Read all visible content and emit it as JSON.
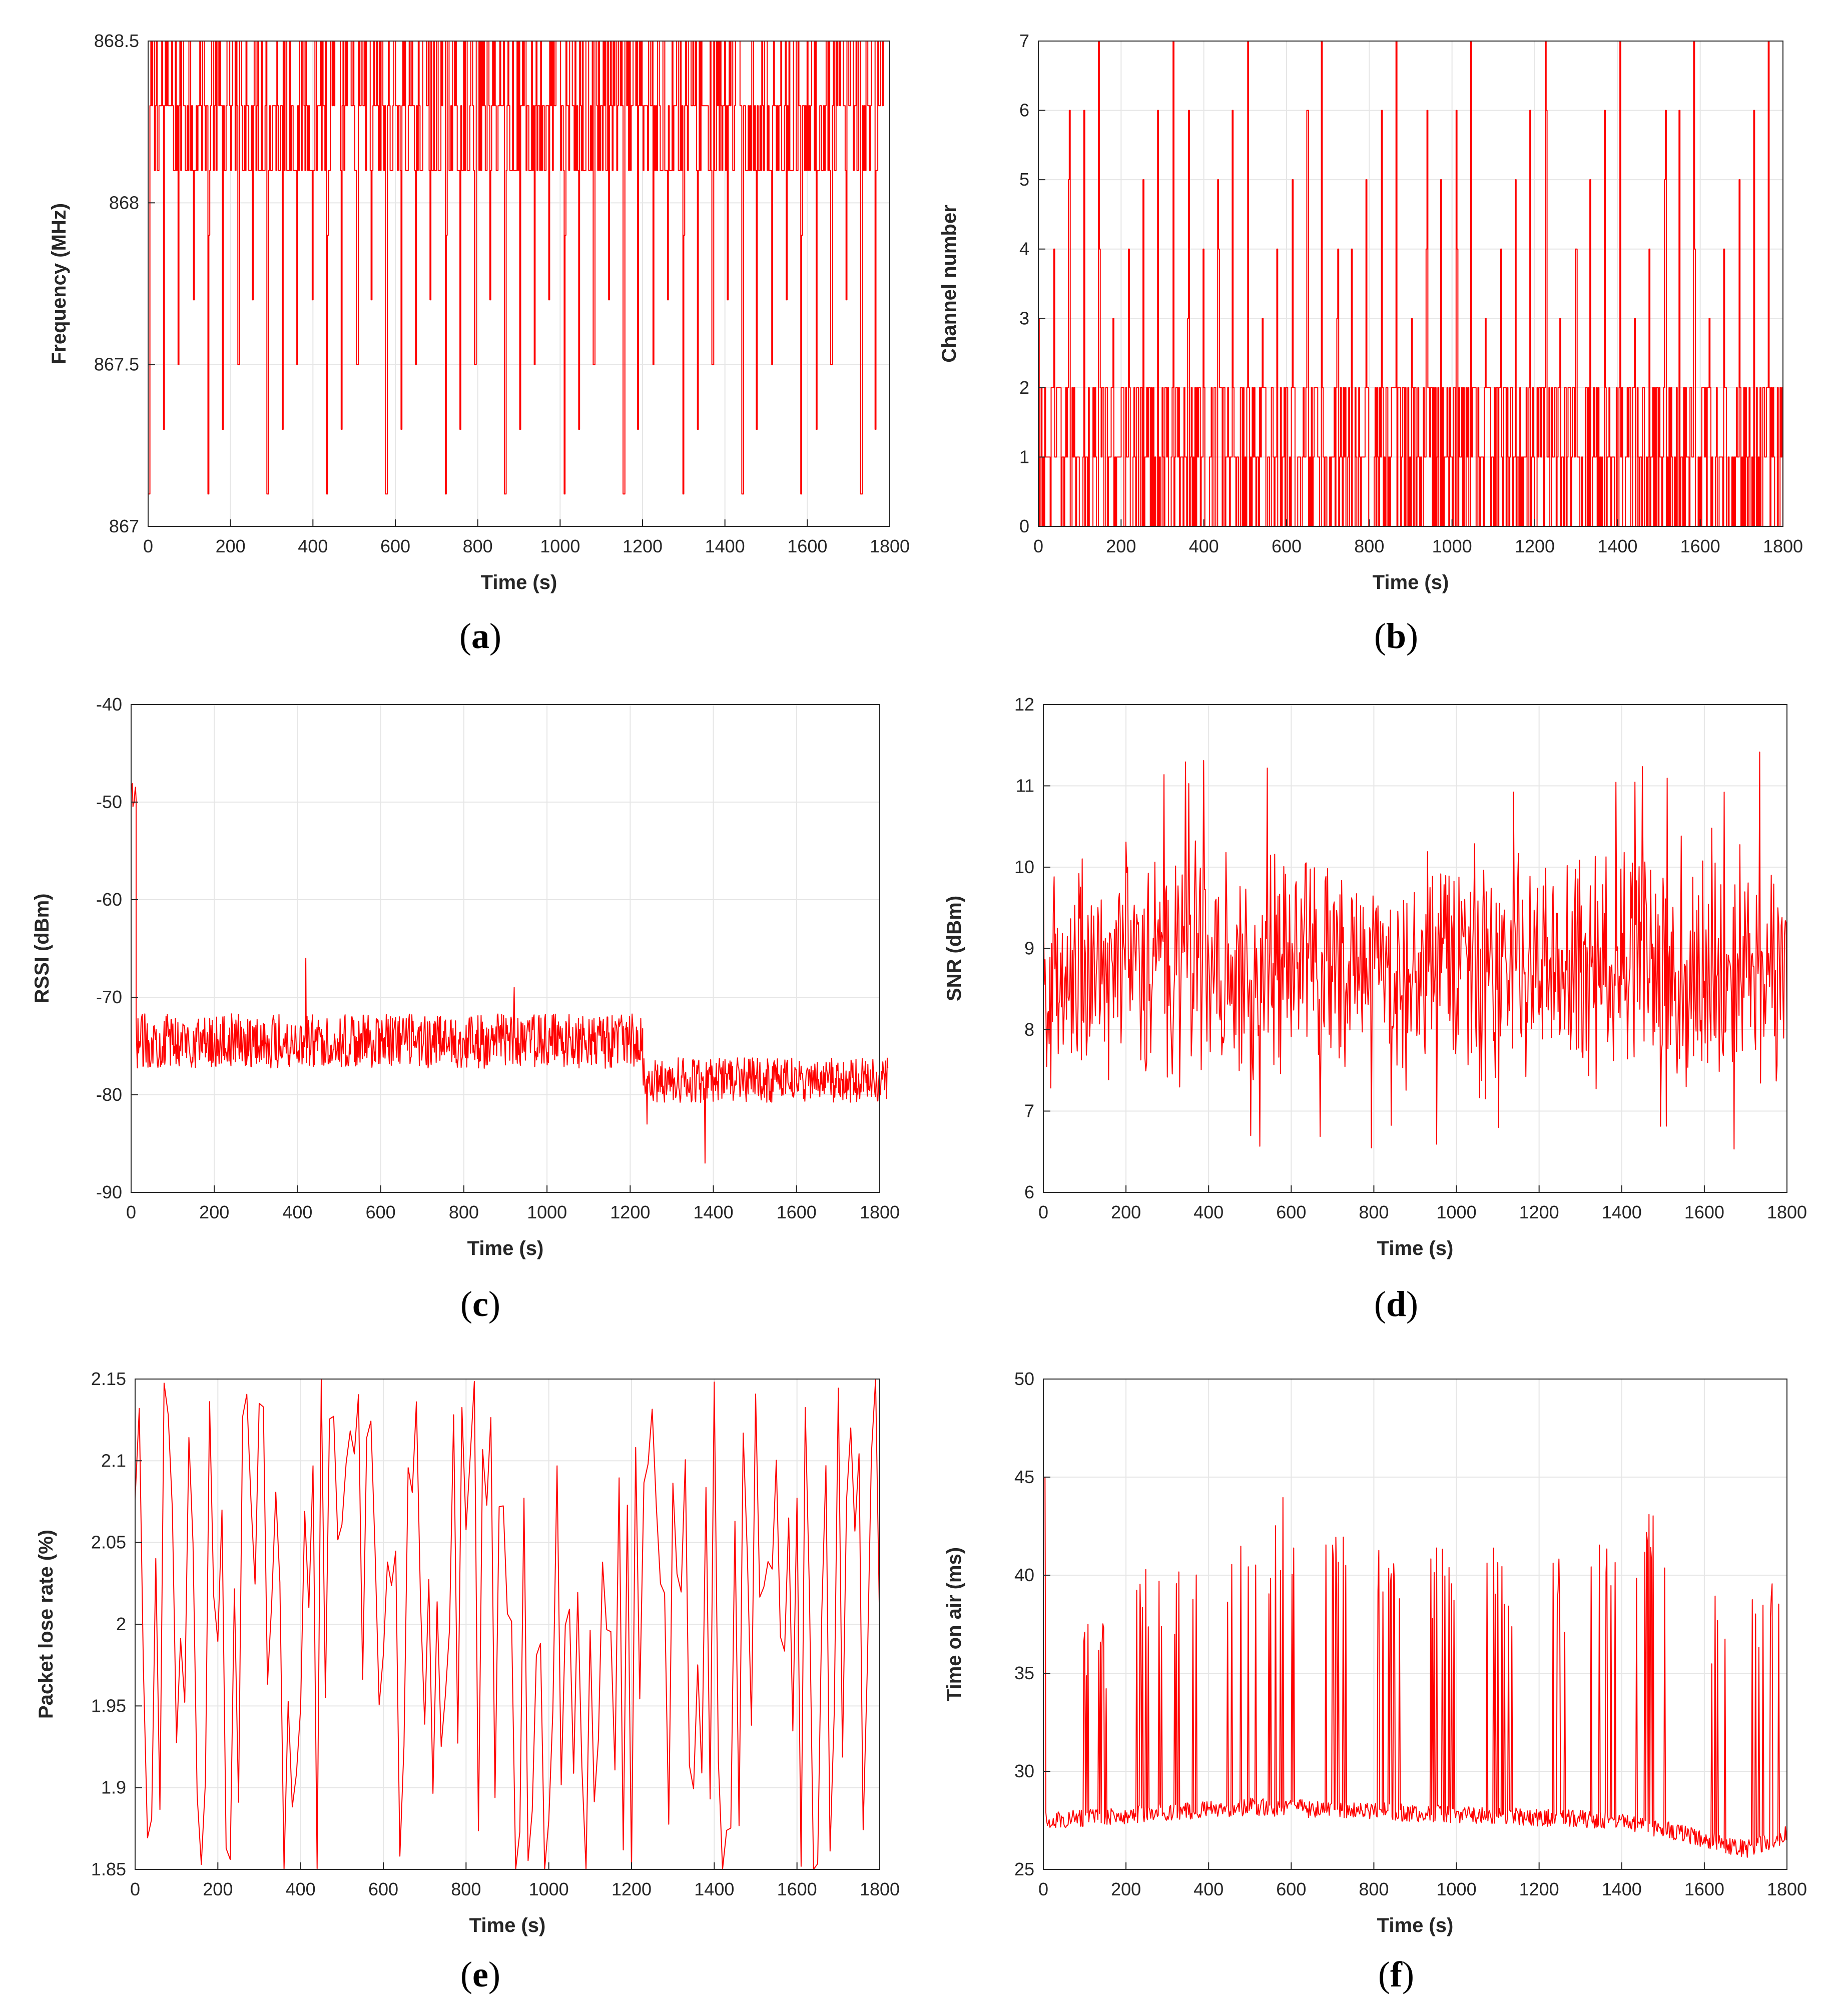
{
  "chart_data": [
    {
      "id": "a",
      "type": "line",
      "caption_letter": "a",
      "xlabel": "Time (s)",
      "ylabel": "Frequency (MHz)",
      "xlim": [
        0,
        1800
      ],
      "ylim": [
        867,
        868.5
      ],
      "xticks": [
        "0",
        "200",
        "400",
        "600",
        "800",
        "1000",
        "1200",
        "1400",
        "1600",
        "1800"
      ],
      "yticks": [
        "867",
        "867.5",
        "868",
        "868.5"
      ],
      "grid": true,
      "color": "#ff0000",
      "pattern": {
        "kind": "frequency-hopping",
        "levels": [
          867.1,
          867.3,
          867.5,
          867.7,
          867.9,
          868.1,
          868.3,
          868.5
        ],
        "dense_band": [
          868.1,
          868.5
        ],
        "x_end": 1785
      }
    },
    {
      "id": "b",
      "type": "line",
      "caption_letter": "b",
      "xlabel": "Time (s)",
      "ylabel": "Channel number",
      "xlim": [
        0,
        1800
      ],
      "ylim": [
        0,
        7
      ],
      "xticks": [
        "0",
        "200",
        "400",
        "600",
        "800",
        "1000",
        "1200",
        "1400",
        "1600",
        "1800"
      ],
      "yticks": [
        "0",
        "1",
        "2",
        "3",
        "4",
        "5",
        "6",
        "7"
      ],
      "grid": true,
      "color": "#ff0000",
      "pattern": {
        "kind": "channel-hopping",
        "levels": [
          0,
          1,
          2,
          3,
          4,
          5,
          6,
          7
        ],
        "dense_band": [
          0,
          2
        ],
        "x_end": 1800
      }
    },
    {
      "id": "c",
      "type": "line",
      "caption_letter": "c",
      "xlabel": "Time (s)",
      "ylabel": "RSSI (dBm)",
      "xlim": [
        0,
        1800
      ],
      "ylim": [
        -90,
        -40
      ],
      "xticks": [
        "0",
        "200",
        "400",
        "600",
        "800",
        "1000",
        "1200",
        "1400",
        "1600",
        "1800"
      ],
      "yticks": [
        "-90",
        "-80",
        "-70",
        "-60",
        "-50",
        "-40"
      ],
      "grid": true,
      "color": "#ff0000",
      "pattern": {
        "kind": "noisy-steps",
        "segments": [
          {
            "x0": 0,
            "x1": 12,
            "mean": -50,
            "spread": 2
          },
          {
            "x0": 12,
            "x1": 1230,
            "mean": -74.5,
            "spread": 2.8
          },
          {
            "x0": 1230,
            "x1": 1820,
            "mean": -78.5,
            "spread": 2.3
          }
        ],
        "spikes": [
          [
            420,
            -66
          ],
          [
            1380,
            -87
          ],
          [
            1240,
            -83
          ],
          [
            920,
            -69
          ]
        ]
      }
    },
    {
      "id": "d",
      "type": "line",
      "caption_letter": "d",
      "xlabel": "Time (s)",
      "ylabel": "SNR (dBm)",
      "xlim": [
        0,
        1800
      ],
      "ylim": [
        6,
        12
      ],
      "xticks": [
        "0",
        "200",
        "400",
        "600",
        "800",
        "1000",
        "1200",
        "1400",
        "1600",
        "1800"
      ],
      "yticks": [
        "6",
        "7",
        "8",
        "9",
        "10",
        "11",
        "12"
      ],
      "grid": true,
      "color": "#ff0000",
      "pattern": {
        "kind": "noise",
        "mean": 8.8,
        "min": 6.5,
        "max": 11.5,
        "x_end": 1800
      }
    },
    {
      "id": "e",
      "type": "line",
      "caption_letter": "e",
      "xlabel": "Time (s)",
      "ylabel": "Packet lose rate (%)",
      "xlim": [
        0,
        1800
      ],
      "ylim": [
        1.85,
        2.15
      ],
      "xticks": [
        "0",
        "200",
        "400",
        "600",
        "800",
        "1000",
        "1200",
        "1400",
        "1600",
        "1800"
      ],
      "yticks": [
        "1.85",
        "1.9",
        "1.95",
        "2",
        "2.05",
        "2.1",
        "2.15"
      ],
      "grid": true,
      "color": "#ff0000",
      "pattern": {
        "kind": "sparse-noise",
        "mean": 2.0,
        "min": 1.85,
        "max": 2.15,
        "step": 10,
        "x_end": 1800
      }
    },
    {
      "id": "f",
      "type": "line",
      "caption_letter": "f",
      "xlabel": "Time (s)",
      "ylabel": "Time on air (ms)",
      "xlim": [
        0,
        1800
      ],
      "ylim": [
        25,
        50
      ],
      "xticks": [
        "0",
        "200",
        "400",
        "600",
        "800",
        "1000",
        "1200",
        "1400",
        "1600",
        "1800"
      ],
      "yticks": [
        "25",
        "30",
        "35",
        "40",
        "45",
        "50"
      ],
      "grid": true,
      "color": "#ff0000",
      "pattern": {
        "kind": "baseline-bursts",
        "baseline": [
          [
            0,
            27.5
          ],
          [
            500,
            28.2
          ],
          [
            1400,
            27.5
          ],
          [
            1550,
            26.8
          ],
          [
            1700,
            26.0
          ],
          [
            1800,
            26.8
          ]
        ],
        "bursts": [
          [
            120,
            39
          ],
          [
            260,
            41
          ],
          [
            350,
            42
          ],
          [
            480,
            43
          ],
          [
            580,
            44
          ],
          [
            700,
            43.5
          ],
          [
            830,
            43
          ],
          [
            960,
            42
          ],
          [
            1100,
            42.5
          ],
          [
            1230,
            42
          ],
          [
            1360,
            42.5
          ],
          [
            1470,
            43.5
          ],
          [
            1640,
            40
          ],
          [
            1750,
            40.5
          ]
        ]
      }
    }
  ]
}
